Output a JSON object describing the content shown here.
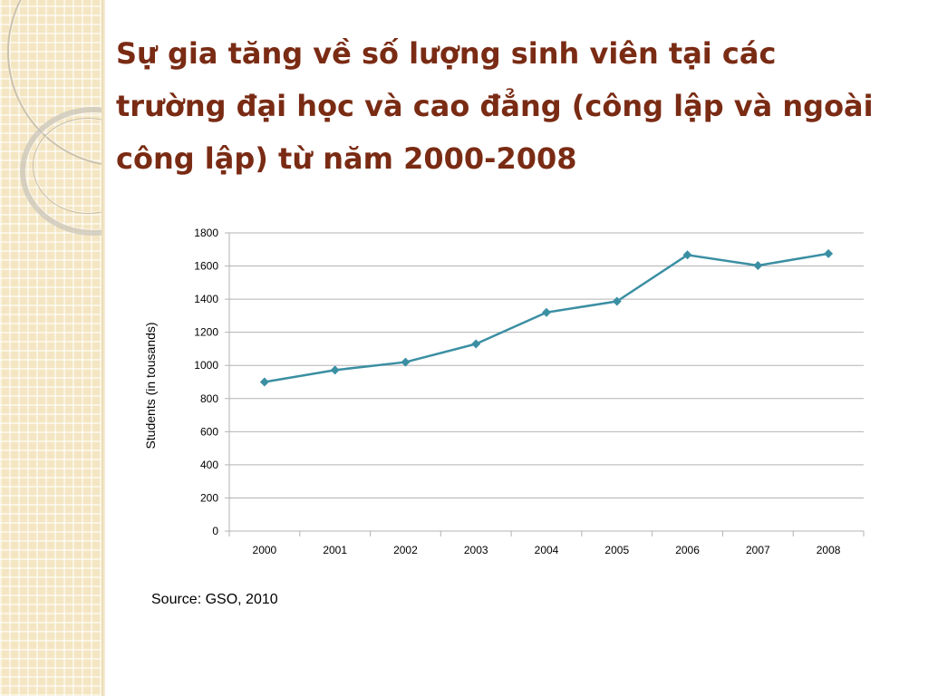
{
  "slide": {
    "title": "Sự gia tăng về số lượng sinh viên tại các trường đại học và cao đẳng (công lập và ngoài công lập) từ năm 2000-2008",
    "source": "Source: GSO, 2010"
  },
  "colors": {
    "title": "#7a2b14",
    "series": "#3b8fa3",
    "grid": "#b3b3b3"
  },
  "chart_data": {
    "type": "line",
    "x": [
      "2000",
      "2001",
      "2002",
      "2003",
      "2004",
      "2005",
      "2006",
      "2007",
      "2008"
    ],
    "series": [
      {
        "values": [
          900,
          972,
          1020,
          1130,
          1320,
          1387,
          1667,
          1603,
          1675
        ]
      }
    ],
    "ylabel": "Students (in tousands)",
    "xlabel": "",
    "ylim": [
      0,
      1800
    ],
    "yticks": [
      0,
      200,
      400,
      600,
      800,
      1000,
      1200,
      1400,
      1600,
      1800
    ],
    "grid": true,
    "marker": "diamond"
  }
}
